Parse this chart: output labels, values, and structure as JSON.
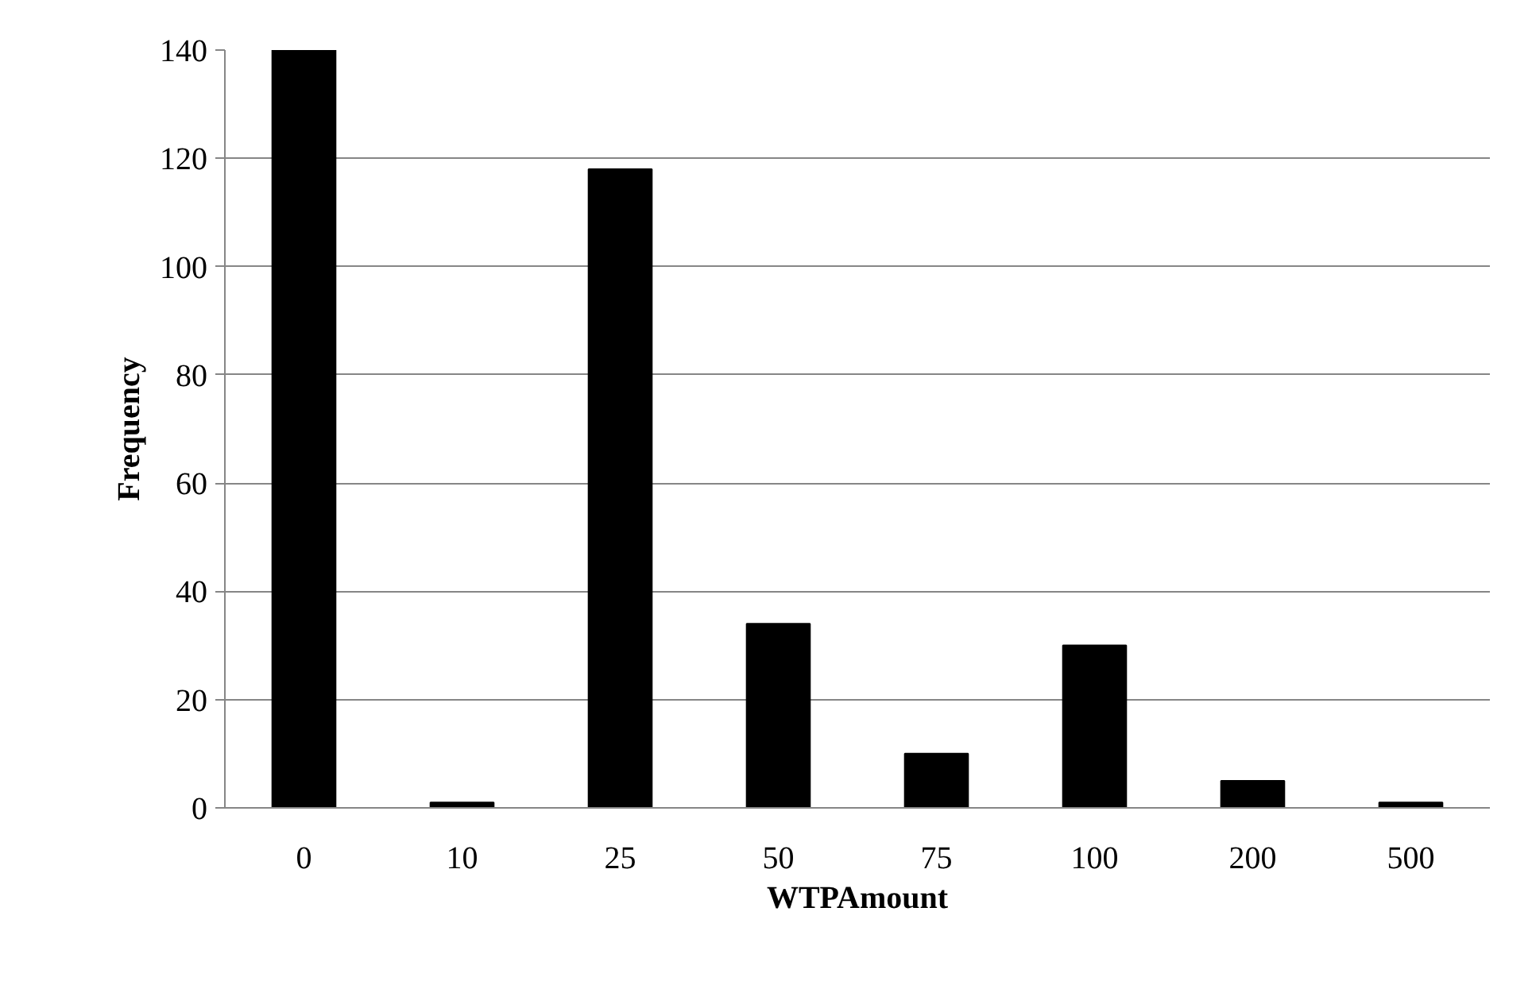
{
  "chart_data": {
    "type": "bar",
    "xlabel": "WTPAmount",
    "ylabel": "Frequency",
    "categories": [
      "0",
      "10",
      "25",
      "50",
      "75",
      "100",
      "200",
      "500"
    ],
    "values": [
      140,
      1,
      118,
      34,
      10,
      30,
      5,
      1
    ],
    "color": "#000000",
    "ylim": [
      0,
      140
    ],
    "yticks": [
      0,
      20,
      40,
      60,
      80,
      100,
      120,
      140
    ],
    "grid": "y"
  }
}
